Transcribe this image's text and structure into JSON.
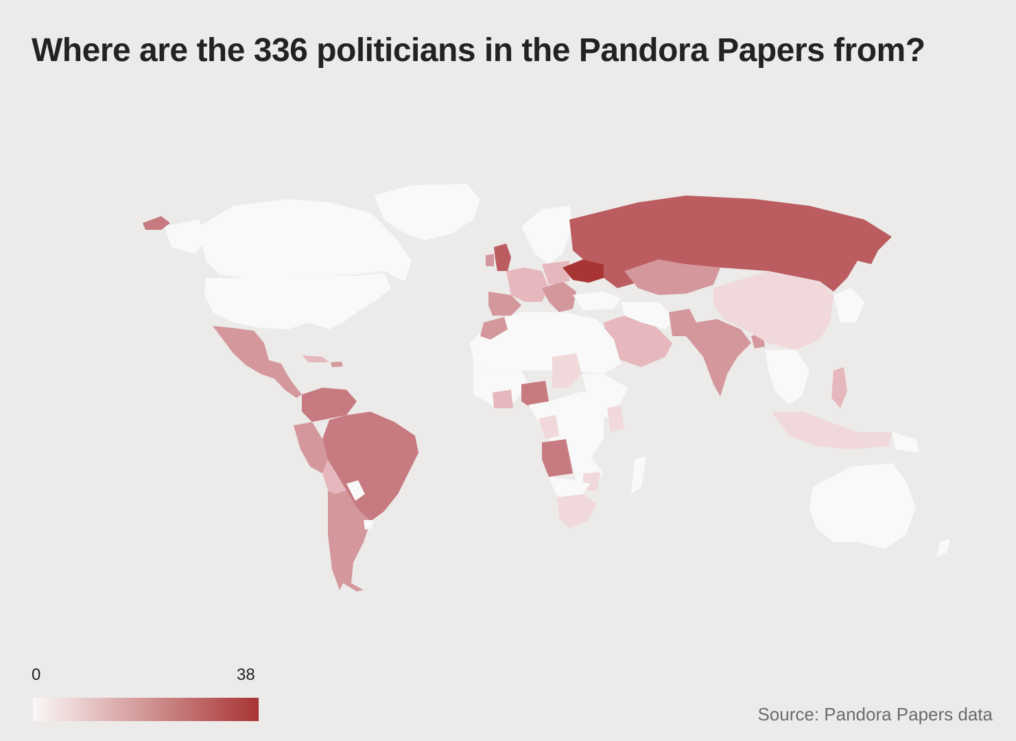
{
  "title": "Where are the 336 politicians in the Pandora Papers from?",
  "legend": {
    "min_label": "0",
    "max_label": "38",
    "min_color": "#fbf7f7",
    "max_color": "#a83434"
  },
  "source": "Source: Pandora Papers data",
  "colors": {
    "background": "#ecebea",
    "zero": "#f9f9f9",
    "low": "#f0d8db",
    "light_mid": "#e6b8bd",
    "mid": "#d4979c",
    "mid_dark": "#c77a7f",
    "dark": "#bb5d60",
    "max": "#a83434"
  }
}
